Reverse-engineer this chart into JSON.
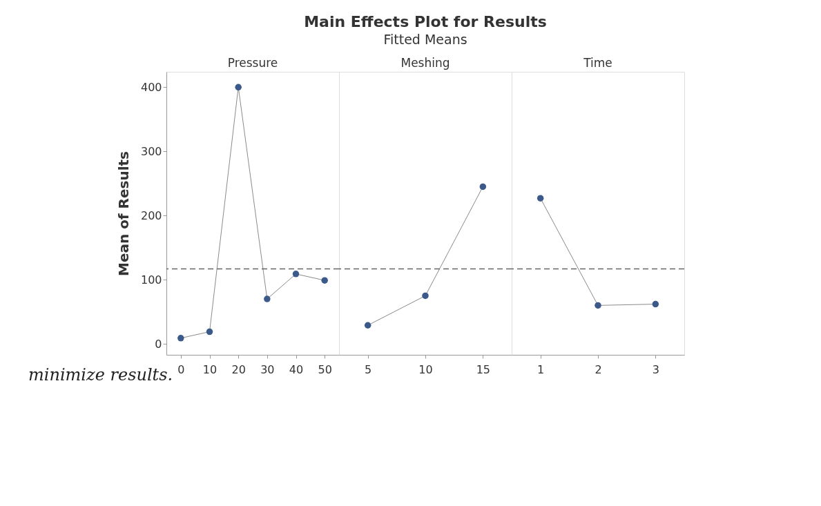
{
  "chart_data": [
    {
      "type": "line",
      "ylabel": "Mean of Results",
      "x2label": "Pressure",
      "annotations": [
        "minimize results."
      ],
      "x": [
        0,
        10,
        20,
        30,
        40,
        50
      ],
      "xlim": [
        -5,
        55
      ],
      "xticks": [
        0,
        10,
        20,
        30,
        40,
        50
      ],
      "ylim": [
        -17,
        424
      ],
      "yticks": [
        0,
        100,
        200,
        300,
        400
      ],
      "marker": "circle",
      "series": [
        {
          "color": "#3b5a8a",
          "values": [
            9,
            19,
            400,
            70,
            109,
            99
          ]
        }
      ],
      "ref_lines": [
        {
          "axis": "y",
          "value": 117,
          "color": "#666666",
          "line_style": "dashed"
        }
      ]
    },
    {
      "type": "line",
      "title": "Main Effects Plot for Results",
      "subtitle": "Fitted Means",
      "x2label": "Meshing",
      "tick_labels": "x",
      "x": [
        5,
        10,
        15
      ],
      "xlim": [
        2.5,
        17.5
      ],
      "xticks": [
        5,
        10,
        15
      ],
      "ylim": [
        -17,
        424
      ],
      "marker": "circle",
      "series": [
        {
          "color": "#3b5a8a",
          "values": [
            29,
            75,
            245
          ]
        }
      ],
      "ref_lines": [
        {
          "axis": "y",
          "value": 117,
          "color": "#666666",
          "line_style": "dashed"
        }
      ]
    },
    {
      "type": "line",
      "x2label": "Time",
      "tick_labels": "x",
      "x": [
        1,
        2,
        3
      ],
      "xlim": [
        0.5,
        3.5
      ],
      "xticks": [
        1,
        2,
        3
      ],
      "ylim": [
        -17,
        424
      ],
      "marker": "circle",
      "series": [
        {
          "color": "#3b5a8a",
          "values": [
            227,
            60,
            62
          ]
        }
      ],
      "ref_lines": [
        {
          "axis": "y",
          "value": 117,
          "color": "#666666",
          "line_style": "dashed"
        }
      ]
    }
  ]
}
